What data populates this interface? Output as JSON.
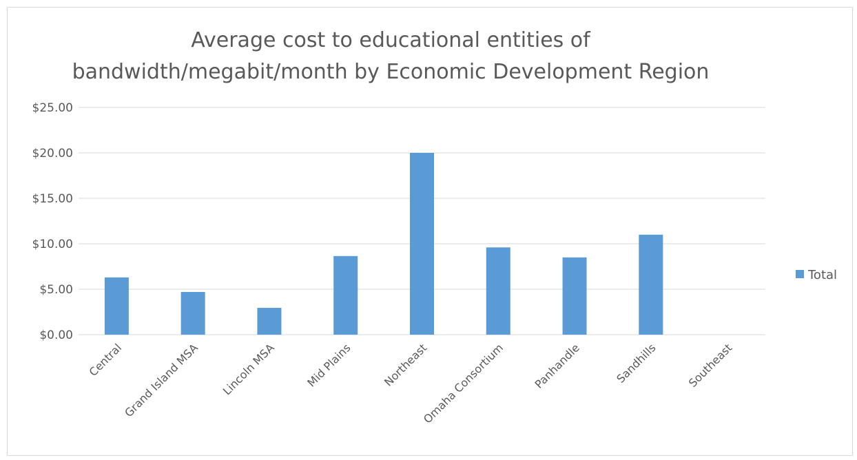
{
  "chart_data": {
    "type": "bar",
    "title_lines": [
      "Average cost to educational entities of",
      "bandwidth/megabit/month by Economic Development Region"
    ],
    "categories": [
      "Central",
      "Grand Island MSA",
      "Lincoln MSA",
      "Mid Plains",
      "Northeast",
      "Omaha Consortium",
      "Panhandle",
      "Sandhills",
      "Southeast"
    ],
    "series": [
      {
        "name": "Total",
        "values": [
          6.3,
          4.7,
          2.95,
          8.65,
          20.0,
          9.6,
          8.5,
          11.0,
          0
        ]
      }
    ],
    "yticks": [
      "$0.00",
      "$5.00",
      "$10.00",
      "$15.00",
      "$20.00",
      "$25.00"
    ],
    "ylim": [
      0,
      25
    ],
    "grid": true,
    "legend": "right",
    "colors": {
      "bar": "#5b9bd5",
      "grid": "#d9d9d9",
      "text": "#595959"
    }
  }
}
